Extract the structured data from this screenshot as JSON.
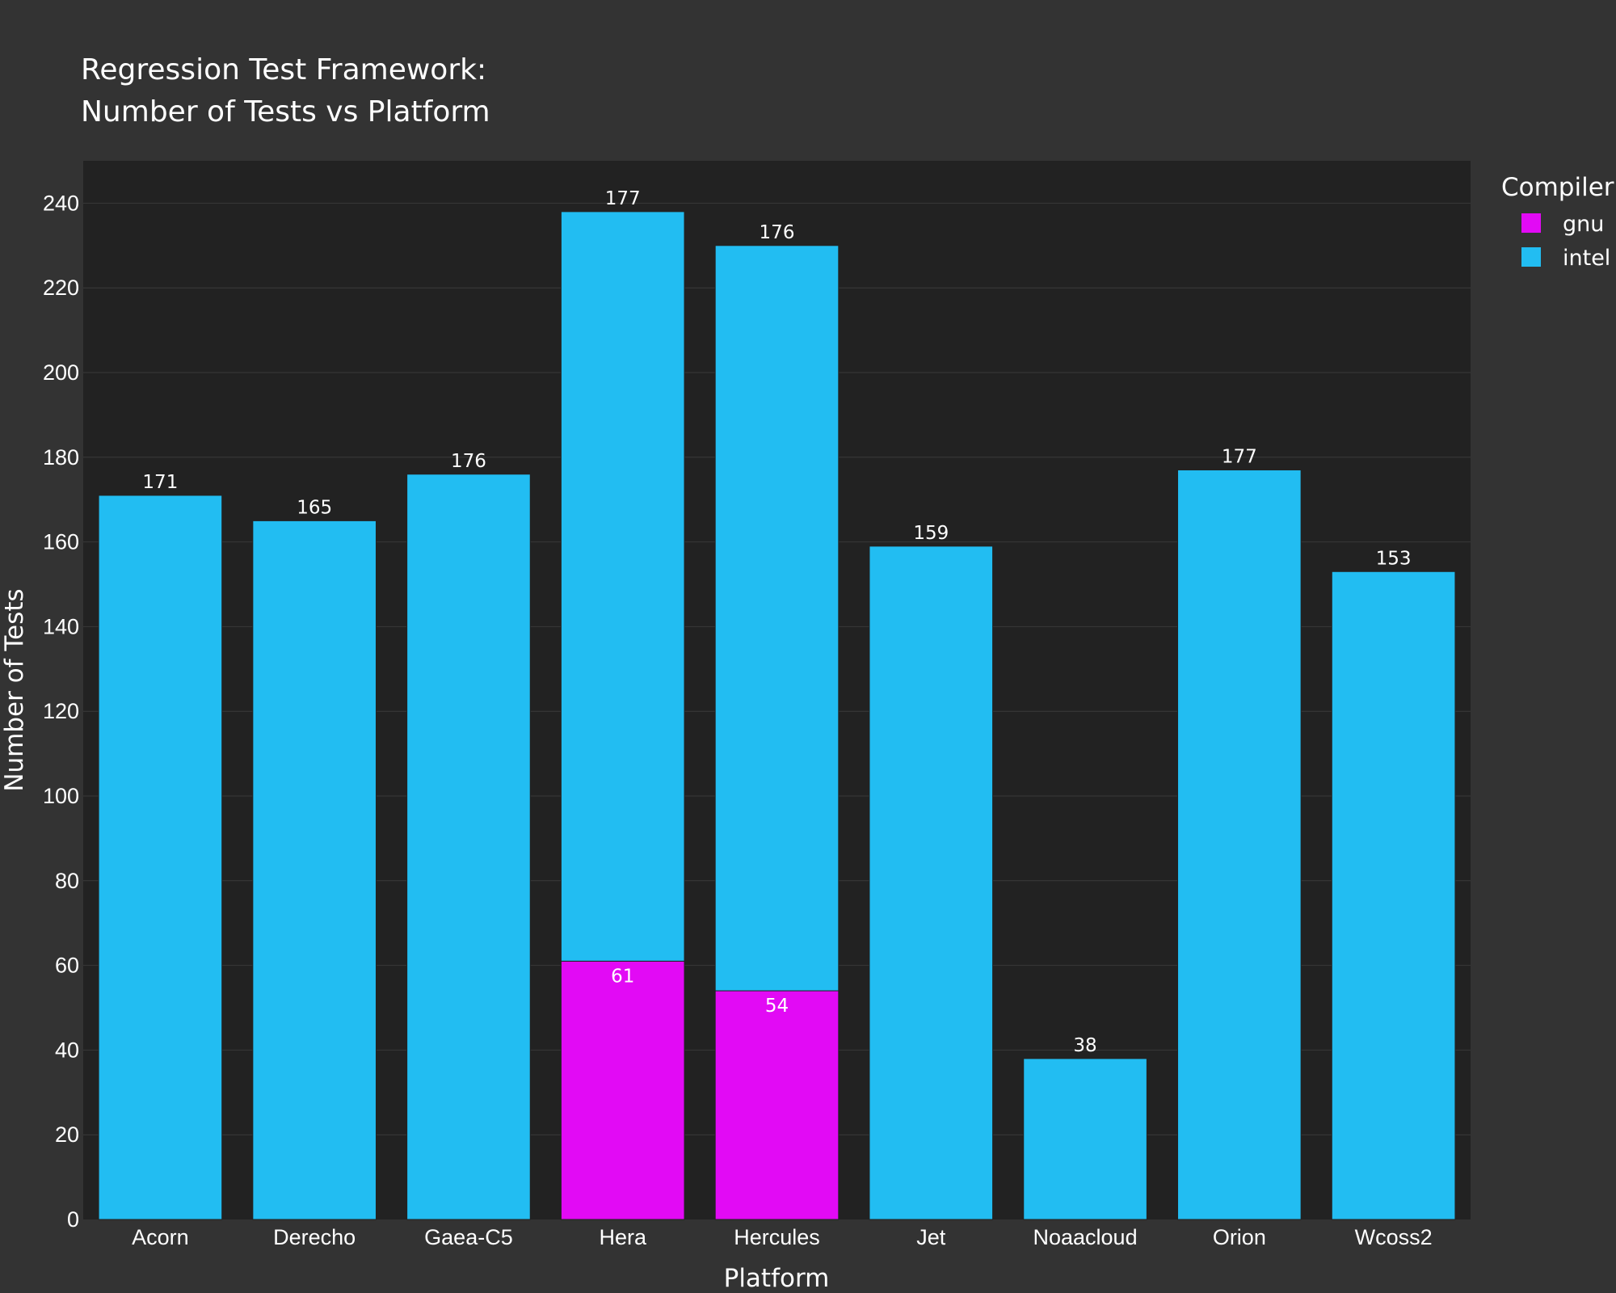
{
  "chart_data": {
    "type": "bar",
    "barmode": "stack",
    "title_lines": [
      "Regression Test Framework:",
      "Number of Tests vs Platform"
    ],
    "xlabel": "Platform",
    "ylabel": "Number of Tests",
    "ylim": [
      0,
      250
    ],
    "yticks": [
      0,
      20,
      40,
      60,
      80,
      100,
      120,
      140,
      160,
      180,
      200,
      220,
      240
    ],
    "grid": true,
    "categories": [
      "Acorn",
      "Derecho",
      "Gaea-C5",
      "Hera",
      "Hercules",
      "Jet",
      "Noaacloud",
      "Orion",
      "Wcoss2"
    ],
    "series": [
      {
        "name": "gnu",
        "color": "#e20af5",
        "values": [
          null,
          null,
          null,
          61,
          54,
          null,
          null,
          null,
          null
        ]
      },
      {
        "name": "intel",
        "color": "#22bdf2",
        "values": [
          171,
          165,
          176,
          177,
          176,
          159,
          38,
          177,
          153
        ]
      }
    ],
    "legend": {
      "title": "Compiler",
      "position": "top-right"
    }
  }
}
